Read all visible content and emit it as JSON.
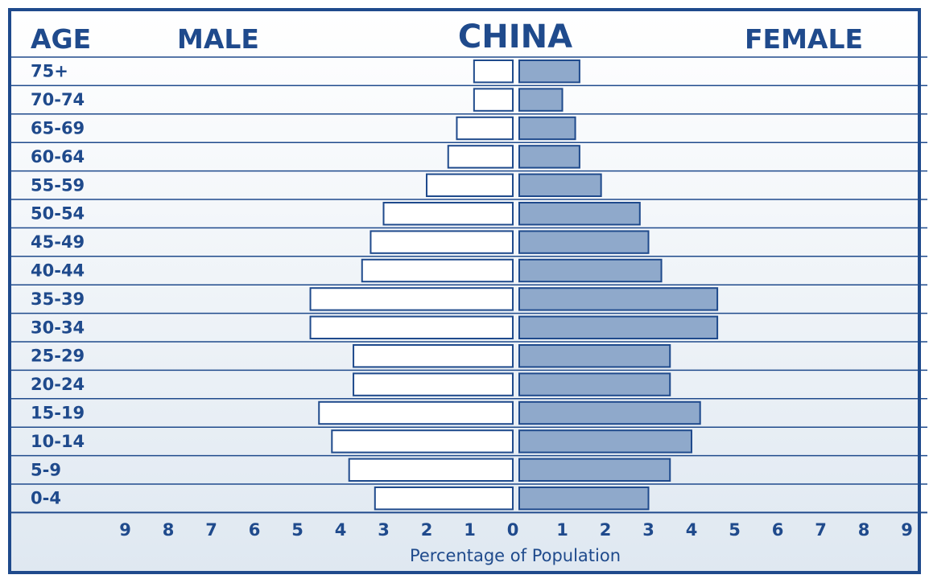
{
  "header": {
    "age_label": "AGE",
    "male_label": "MALE",
    "title": "CHINA",
    "female_label": "FEMALE"
  },
  "colors": {
    "frame": "#1f4a8c",
    "text": "#1f4a8c",
    "male_fill": "#ffffff",
    "female_fill": "#8fa9cb",
    "bar_stroke": "#1f4a8c",
    "background": "#eef3f8"
  },
  "chart_data": {
    "type": "bar",
    "orientation": "horizontal",
    "title": "CHINA",
    "categories": [
      "75+",
      "70-74",
      "65-69",
      "60-64",
      "55-59",
      "50-54",
      "45-49",
      "40-44",
      "35-39",
      "30-34",
      "25-29",
      "20-24",
      "15-19",
      "10-14",
      "5-9",
      "0-4"
    ],
    "series": [
      {
        "name": "MALE",
        "values": [
          0.9,
          0.9,
          1.3,
          1.5,
          2.0,
          3.0,
          3.3,
          3.5,
          4.7,
          4.7,
          3.7,
          3.7,
          4.5,
          4.2,
          3.8,
          3.2
        ]
      },
      {
        "name": "FEMALE",
        "values": [
          1.4,
          1.0,
          1.3,
          1.4,
          1.9,
          2.8,
          3.0,
          3.3,
          4.6,
          4.6,
          3.5,
          3.5,
          4.2,
          4.0,
          3.5,
          3.0
        ]
      }
    ],
    "x_ticks_left": [
      "9",
      "8",
      "7",
      "6",
      "5",
      "4",
      "3",
      "2",
      "1",
      "0"
    ],
    "x_ticks_right": [
      "1",
      "2",
      "3",
      "4",
      "5",
      "6",
      "7",
      "8",
      "9"
    ],
    "xlabel": "Percentage of Population",
    "xlim": [
      0,
      9
    ]
  }
}
